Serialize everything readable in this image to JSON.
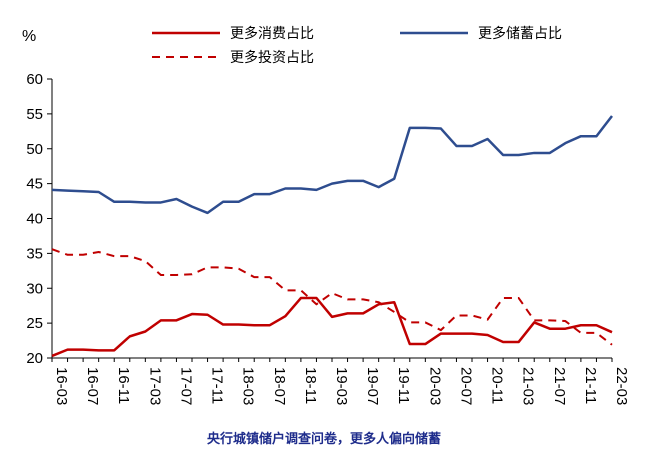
{
  "caption": "央行城镇储户调查问卷，更多人偏向储蓄",
  "chart_data": {
    "type": "line",
    "ylabel": "%",
    "ylim": [
      20,
      60
    ],
    "yticks": [
      20,
      25,
      30,
      35,
      40,
      45,
      50,
      55,
      60
    ],
    "x": [
      "16-03",
      "16-05",
      "16-07",
      "16-09",
      "16-11",
      "17-01",
      "17-03",
      "17-05",
      "17-07",
      "17-09",
      "17-11",
      "18-01",
      "18-03",
      "18-05",
      "18-07",
      "18-09",
      "18-11",
      "19-01",
      "19-03",
      "19-05",
      "19-07",
      "19-09",
      "19-11",
      "20-01",
      "20-03",
      "20-05",
      "20-07",
      "20-09",
      "20-11",
      "21-01",
      "21-03",
      "21-05",
      "21-07",
      "21-09",
      "21-11",
      "22-01",
      "22-03"
    ],
    "x_tick_labels": [
      "16-03",
      "16-07",
      "16-11",
      "17-03",
      "17-07",
      "17-11",
      "18-03",
      "18-07",
      "18-11",
      "19-03",
      "19-07",
      "19-11",
      "20-03",
      "20-07",
      "20-11",
      "21-03",
      "21-07",
      "21-11",
      "22-03"
    ],
    "grid": false,
    "legend_position": "top",
    "series": [
      {
        "name": "更多消费占比",
        "color": "#c00000",
        "style": "solid",
        "values": [
          20.3,
          21.2,
          21.2,
          21.1,
          21.1,
          23.1,
          23.8,
          25.4,
          25.4,
          26.3,
          26.2,
          24.8,
          24.8,
          24.7,
          24.7,
          26.0,
          28.6,
          28.6,
          25.9,
          26.4,
          26.4,
          27.7,
          28.0,
          22.0,
          22.0,
          23.5,
          23.5,
          23.5,
          23.3,
          22.3,
          22.3,
          25.1,
          24.2,
          24.2,
          24.7,
          24.7,
          23.7
        ]
      },
      {
        "name": "更多储蓄占比",
        "color": "#2e4d8f",
        "style": "solid",
        "values": [
          44.1,
          44.0,
          43.9,
          43.8,
          42.4,
          42.4,
          42.3,
          42.3,
          42.8,
          41.7,
          40.8,
          42.4,
          42.4,
          43.5,
          43.5,
          44.3,
          44.3,
          44.1,
          45.0,
          45.4,
          45.4,
          44.5,
          45.7,
          53.0,
          53.0,
          52.9,
          50.4,
          50.4,
          51.4,
          49.1,
          49.1,
          49.4,
          49.4,
          50.8,
          51.8,
          51.8,
          54.7
        ]
      },
      {
        "name": "更多投资占比",
        "color": "#c00000",
        "style": "dashed",
        "values": [
          35.6,
          34.8,
          34.8,
          35.2,
          34.6,
          34.6,
          33.9,
          31.9,
          31.9,
          32.0,
          33.0,
          33.0,
          32.8,
          31.6,
          31.6,
          29.7,
          29.7,
          27.7,
          29.3,
          28.4,
          28.4,
          28.0,
          26.6,
          25.1,
          25.1,
          24.0,
          26.1,
          26.1,
          25.5,
          28.6,
          28.6,
          25.4,
          25.4,
          25.3,
          23.6,
          23.6,
          21.9
        ]
      }
    ]
  }
}
